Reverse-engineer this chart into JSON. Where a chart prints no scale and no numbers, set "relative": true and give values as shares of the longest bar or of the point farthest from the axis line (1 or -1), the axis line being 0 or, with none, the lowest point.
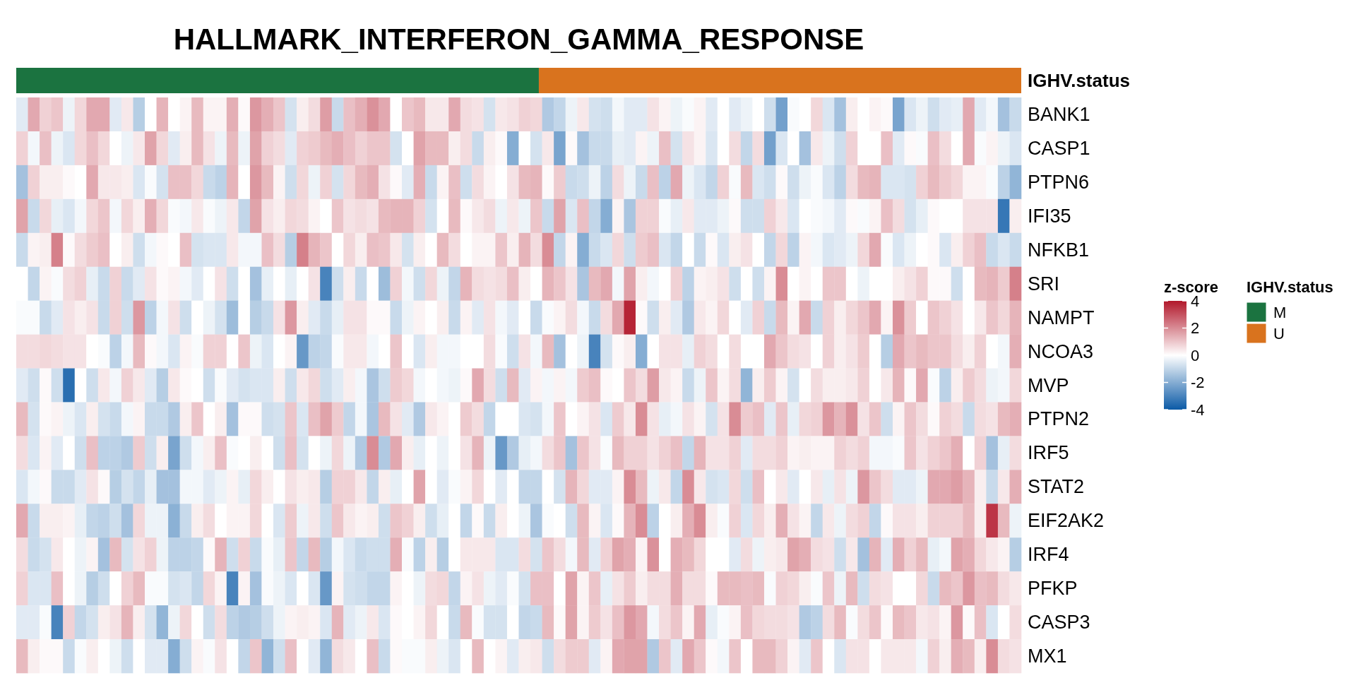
{
  "chart_data": [
    {
      "type": "heatmap",
      "title": "HALLMARK_INTERFERON_GAMMA_RESPONSE",
      "clabel": "z-score",
      "clim": [
        -4,
        4
      ],
      "cticks": [
        -4,
        -2,
        0,
        2,
        4
      ],
      "categories": [
        null,
        null,
        null,
        null,
        null,
        null,
        null,
        null,
        null,
        null,
        null,
        null,
        null,
        null,
        null,
        null,
        null,
        null,
        null,
        null,
        null,
        null,
        null,
        null,
        null,
        null,
        null,
        null,
        null,
        null,
        null,
        null,
        null,
        null,
        null,
        null,
        null,
        null,
        null,
        null,
        null,
        null,
        null,
        null,
        null,
        null,
        null,
        null,
        null,
        null,
        null,
        null,
        null,
        null,
        null,
        null,
        null,
        null,
        null,
        null,
        null,
        null,
        null,
        null,
        null,
        null,
        null,
        null,
        null,
        null,
        null,
        null,
        null,
        null,
        null,
        null,
        null,
        null,
        null,
        null,
        null,
        null,
        null,
        null,
        null,
        null
      ],
      "y_categories": [
        "BANK1",
        "CASP1",
        "PTPN6",
        "IFI35",
        "NFKB1",
        "SRI",
        "NAMPT",
        "NCOA3",
        "MVP",
        "PTPN2",
        "IRF5",
        "STAT2",
        "EIF2AK2",
        "IRF4",
        "PFKP",
        "CASP3",
        "MX1"
      ],
      "cells": [
        [
          -0.5,
          1.5,
          0.8,
          1,
          -0.3,
          0.7,
          1.5,
          1.5,
          -0.5,
          0.4,
          -1.2,
          0,
          1.3,
          0,
          0.2,
          1.2,
          0.2,
          0.2,
          1.4,
          0.1,
          1.8,
          1.4,
          1,
          -0.7,
          0.3,
          0.6,
          1.7,
          -0.9,
          1.1,
          1.4,
          1.9,
          1.5,
          0,
          1,
          1.2,
          0.4,
          0.4,
          1.5,
          0.6,
          0.5,
          -0.7,
          0.4,
          0.5,
          0.8,
          0.7,
          -1.3,
          -1,
          -0.3,
          0.4,
          -0.7,
          -0.8,
          -0.2,
          -0.5,
          -0.5,
          0.5,
          0.2,
          -0.3,
          -0.1,
          0.2,
          -0.5,
          0,
          -0.5,
          -0.3,
          0,
          -0.8,
          -2.3,
          -0.1,
          0,
          0.7,
          -0.6,
          -1.5,
          0.3,
          0,
          0.2,
          0.1,
          -2.2,
          -0.6,
          -0.3,
          -0.8,
          -0.5,
          -0.4,
          1.5,
          -0.5,
          -0.2,
          -1.5,
          -0.9
        ],
        [
          0.8,
          -0.2,
          1.1,
          -0.3,
          -0.6,
          0.7,
          1.1,
          0.7,
          0,
          -0.3,
          0.4,
          1.6,
          0.7,
          -0.5,
          0.3,
          1.2,
          0.5,
          -0.3,
          1.2,
          -0.3,
          1.6,
          0.8,
          0.6,
          -0.5,
          0.8,
          0.9,
          1.2,
          1.4,
          1.1,
          0.8,
          1,
          1,
          -0.7,
          0,
          1.6,
          1.2,
          1.2,
          0.3,
          0.6,
          -0.9,
          0.3,
          0.1,
          -2,
          0,
          -0.7,
          0.4,
          -2.2,
          0.1,
          -1.5,
          -0.9,
          -0.9,
          -0.4,
          -0.5,
          0.2,
          -0.3,
          1.1,
          -0.7,
          0.5,
          0.2,
          -0.6,
          0,
          0.6,
          -1,
          0.6,
          -2.3,
          -0.6,
          0,
          -1.5,
          0.4,
          -0.3,
          -0.8,
          0.8,
          0,
          0,
          1.1,
          -0.5,
          0.1,
          -0.1,
          1.1,
          0.6,
          0,
          1.5,
          -0.1,
          0.2,
          -0.3,
          -0.6
        ],
        [
          -1.5,
          0.8,
          0.3,
          0.3,
          0.1,
          0,
          1.5,
          0.4,
          0.4,
          0.3,
          -0.6,
          -0.1,
          -0.7,
          1.1,
          1.1,
          0.7,
          -0.9,
          -1.1,
          1.3,
          0,
          1.8,
          1.2,
          0.2,
          -0.8,
          0.7,
          -0.3,
          0.8,
          -0.7,
          0.7,
          1.2,
          1.4,
          0.5,
          0.1,
          -0.5,
          1.4,
          -0.9,
          0.2,
          1.1,
          -0.8,
          0.6,
          0.2,
          0,
          0.5,
          1.2,
          1.3,
          0.1,
          0.9,
          -0.9,
          -0.8,
          -0.3,
          -1.1,
          0.6,
          -0.3,
          -0.9,
          1.1,
          -1.1,
          1.5,
          -0.3,
          -0.6,
          -1,
          0.8,
          -0.1,
          1.2,
          -0.6,
          -0.8,
          0.1,
          -0.8,
          -0.3,
          -0.1,
          -0.6,
          -1.1,
          0.6,
          1.2,
          1.3,
          -0.6,
          -0.6,
          -0.7,
          0.8,
          1.2,
          0.9,
          0.7,
          0.2,
          0.2,
          -0.1,
          -1.1,
          -1.8
        ],
        [
          1.6,
          -0.9,
          0.7,
          -0.4,
          -0.6,
          -0.2,
          0.7,
          1,
          -0.2,
          0.7,
          0.3,
          1.4,
          0.7,
          -0.1,
          -0.2,
          0.4,
          -0.1,
          -0.3,
          0.4,
          -1,
          1.6,
          0.5,
          0.3,
          0.7,
          0.6,
          0.2,
          0,
          1,
          0.5,
          0.6,
          0.5,
          1.2,
          1.3,
          1.3,
          0.8,
          -0.7,
          0,
          1.2,
          0.1,
          0.4,
          0.6,
          -0.3,
          0.4,
          -0.3,
          1,
          -0.9,
          1.6,
          -0.6,
          1.1,
          -1,
          -2,
          0.2,
          -1.4,
          0.8,
          0.8,
          -0.1,
          -0.4,
          0.4,
          -0.5,
          -0.5,
          -0.3,
          0.1,
          -0.8,
          -0.8,
          0.8,
          0.4,
          -0.6,
          0,
          -0.1,
          -0.2,
          -0.5,
          0.1,
          -0.1,
          0.2,
          1.1,
          0.6,
          -0.7,
          -0.4,
          0.1,
          0,
          0,
          0.5,
          0.5,
          0.5,
          -3.3,
          0.3
        ],
        [
          -0.9,
          0.2,
          0.3,
          2.2,
          0.1,
          0.6,
          0.9,
          1.1,
          0,
          0.3,
          -0.8,
          -0.2,
          0.1,
          0,
          1.1,
          -0.7,
          -0.6,
          -0.6,
          0.4,
          -0.2,
          -0.2,
          1.1,
          0.6,
          -1.2,
          2.2,
          1.3,
          1,
          0,
          0.7,
          0.3,
          1.1,
          1,
          0.4,
          -0.7,
          0.3,
          0,
          1.2,
          0.6,
          0,
          0.2,
          0.2,
          1,
          0.3,
          1.3,
          0.6,
          2,
          -1,
          0.2,
          -2,
          -0.9,
          -0.6,
          0.7,
          -0.8,
          0.9,
          1.1,
          -0.6,
          -1,
          0,
          -0.9,
          0.1,
          -0.6,
          0.3,
          0.5,
          0,
          -1,
          0.7,
          -1.1,
          0.2,
          -0.2,
          -0.6,
          -0.5,
          -0.3,
          0.7,
          1.5,
          -0.1,
          -0.6,
          -0.3,
          0,
          0.1,
          -0.6,
          0.3,
          0.8,
          1.1,
          -0.9,
          -0.6,
          -0.9
        ],
        [
          0,
          -1,
          0.2,
          -0.1,
          0.6,
          0.8,
          -0.4,
          -0.9,
          0.8,
          -0.9,
          -0.5,
          0.5,
          0.1,
          0.2,
          -0.2,
          -0.5,
          0,
          0.5,
          -0.8,
          0,
          -1.5,
          -0.4,
          0,
          -0.4,
          0,
          0.5,
          -3,
          -0.8,
          0.3,
          -0.9,
          0,
          -1.6,
          0.8,
          -0.2,
          -0.8,
          0.7,
          -0.3,
          -1,
          1.3,
          0.6,
          0.5,
          0.6,
          1.1,
          0.3,
          0,
          1.3,
          1,
          0.5,
          -1.4,
          1.2,
          1.5,
          -0.2,
          1.6,
          0.3,
          -0.2,
          0,
          0.8,
          -1.1,
          0.2,
          0.3,
          0.5,
          -0.8,
          0,
          -0.8,
          0.2,
          2,
          0,
          0.2,
          0,
          1,
          1,
          0,
          -0.3,
          0,
          0,
          0.3,
          0.5,
          0.8,
          0.1,
          0.1,
          -0.8,
          0,
          1.2,
          1.3,
          0.9,
          2.2
        ],
        [
          -0.1,
          -0.1,
          -0.9,
          -0.5,
          0.5,
          0.3,
          0.5,
          -0.9,
          0.8,
          -0.8,
          1.8,
          -1.1,
          -0.2,
          0.5,
          -0.8,
          0,
          -0.3,
          -0.7,
          -1.6,
          0,
          -1.2,
          -0.9,
          0.5,
          1.8,
          0.3,
          -0.5,
          -0.9,
          -0.4,
          0.5,
          0.5,
          0.1,
          0.1,
          -0.9,
          -0.3,
          0.2,
          0,
          0.3,
          -0.9,
          0.2,
          -0.5,
          0.5,
          -0.2,
          -0.5,
          0,
          -0.9,
          -0.1,
          0.2,
          0.6,
          -0.2,
          -0.9,
          0.6,
          1.5,
          3.8,
          0.1,
          -0.8,
          0.3,
          -0.5,
          -1.3,
          0.4,
          0.2,
          0.7,
          0,
          -0.5,
          0.8,
          -0.9,
          1.2,
          0.2,
          1.5,
          -0.9,
          0.8,
          0.3,
          0.7,
          1,
          1.5,
          0.2,
          1.9,
          0.9,
          0,
          1,
          0.8,
          0.5,
          0,
          0.4,
          1,
          0.7,
          1.3
        ],
        [
          0.6,
          0.6,
          0.7,
          0.6,
          0.5,
          0.5,
          0,
          -0.1,
          -1.1,
          -0.2,
          1.2,
          0.1,
          -0.2,
          -0.6,
          0.2,
          -0.1,
          0.8,
          0.8,
          0,
          1,
          -0.3,
          -0.6,
          0,
          0.2,
          -2.5,
          -1.1,
          -1,
          -0.1,
          0.4,
          0.4,
          -0.2,
          0,
          1,
          0,
          -0.6,
          0.3,
          -0.2,
          -0.2,
          0,
          0,
          0.6,
          -0.1,
          -0.8,
          0.5,
          -0.2,
          1.2,
          -1.5,
          0,
          -0.3,
          -3,
          -0.7,
          0.1,
          0.3,
          -2,
          0,
          0.5,
          0.5,
          -0.4,
          0.8,
          0.6,
          0,
          0.6,
          0,
          0,
          1.5,
          1,
          0.6,
          0.5,
          0,
          0.8,
          0.3,
          0.5,
          0.9,
          0,
          -1.2,
          1.5,
          1,
          1.2,
          1,
          1,
          0.6,
          0.3,
          0.8,
          0,
          -0.2,
          1.4
        ],
        [
          -0.5,
          -0.8,
          0.1,
          -0.8,
          -3.5,
          0,
          -0.8,
          0.4,
          -0.2,
          0.8,
          0.4,
          -0.5,
          -1.2,
          0.4,
          0.1,
          0,
          -0.8,
          -0.1,
          -0.5,
          -0.7,
          -0.6,
          -0.6,
          0.3,
          -0.8,
          0.4,
          0.7,
          -0.8,
          -0.5,
          0.3,
          -0.2,
          -1.4,
          -0.8,
          0.9,
          0.7,
          -0.2,
          0,
          -0.2,
          -0.3,
          0.1,
          1.5,
          0.6,
          -0.8,
          1.2,
          -0.5,
          0.2,
          -0.2,
          0.2,
          -0.2,
          0.9,
          1.1,
          0.1,
          0,
          1,
          0.6,
          1.7,
          0.4,
          0.2,
          -0.9,
          -0.3,
          1,
          0.2,
          0.6,
          -1.8,
          0.3,
          0.9,
          0.2,
          -0.7,
          0,
          0.6,
          0.3,
          0.3,
          0.4,
          0.8,
          0,
          0.4,
          1.3,
          0.1,
          1.5,
          -0.1,
          -1.1,
          0.3,
          0.9,
          0.6,
          -0.3,
          -0.2,
          0.7
        ],
        [
          1.2,
          -0.7,
          0.1,
          0.2,
          -0.3,
          -0.6,
          0.3,
          -0.7,
          -0.9,
          -0.2,
          0.2,
          -0.9,
          -0.9,
          -1.3,
          0.3,
          1,
          0,
          0.3,
          -1.5,
          0.1,
          0.1,
          -0.8,
          -0.7,
          1,
          -0.6,
          1.1,
          1.6,
          0.9,
          -1,
          -0.2,
          -1.4,
          1.2,
          0.5,
          -0.5,
          -1.3,
          0.4,
          0.2,
          0,
          0.9,
          0.6,
          -1,
          0,
          0,
          -0.6,
          -0.7,
          -0.2,
          1,
          0,
          0.2,
          0.5,
          -0.6,
          0.9,
          0.4,
          2,
          0.5,
          -0.4,
          -0.2,
          0.5,
          0.2,
          -0.7,
          0.5,
          2,
          0.9,
          1.1,
          -0.5,
          1,
          -0.4,
          0.7,
          0.8,
          1.8,
          1.3,
          1.9,
          0.5,
          1,
          -0.8,
          0.2,
          1,
          0.6,
          0.1,
          0.8,
          0.6,
          -0.9,
          0.6,
          0.5,
          1.2,
          1.4
        ],
        [
          0.6,
          -0.6,
          0.2,
          -0.5,
          0,
          -0.8,
          1.1,
          -1.1,
          -1.1,
          -1.3,
          0.9,
          -0.8,
          0.3,
          -2.2,
          -0.8,
          -0.2,
          0.3,
          1.1,
          -0.1,
          0,
          0.3,
          0,
          -0.8,
          1.1,
          -0.7,
          0,
          -0.3,
          0.7,
          -0.3,
          -1.3,
          2,
          -1.3,
          1.5,
          0.3,
          -0.4,
          0,
          -0.3,
          0,
          0.5,
          1.3,
          -0.3,
          -2.5,
          -1.3,
          -0.4,
          -0.2,
          0.6,
          1,
          -1.5,
          1,
          0.5,
          -0.1,
          1.2,
          0.8,
          0.8,
          0.5,
          0.8,
          1.1,
          -1,
          1.3,
          0.5,
          0.5,
          0.8,
          -0.5,
          0.6,
          0.6,
          0.8,
          0.2,
          0.3,
          0.2,
          0.2,
          0.8,
          0.6,
          0.8,
          -0.2,
          -0.2,
          -0.1,
          1,
          0.5,
          0.8,
          1,
          1.4,
          0,
          0.8,
          -1.5,
          -0.4,
          0.6
        ],
        [
          -0.6,
          -0.2,
          0.1,
          -0.9,
          -0.9,
          -0.5,
          0.5,
          0.1,
          -1.2,
          -0.7,
          -1,
          -0.4,
          -1.5,
          -1.5,
          -0.2,
          -0.2,
          -0.5,
          -0.3,
          0.2,
          -0.4,
          0.7,
          0.3,
          0,
          0.5,
          0.3,
          0.4,
          -1.2,
          0.8,
          0.8,
          0.4,
          -1,
          0.3,
          -0.4,
          0,
          1.6,
          0,
          -0.5,
          -0.1,
          0.2,
          0.7,
          0,
          -0.5,
          0,
          -1,
          -1,
          0,
          -0.7,
          1.3,
          0.7,
          -0.5,
          -0.5,
          0.2,
          2,
          1.2,
          -0.3,
          0.4,
          -1,
          2,
          0.4,
          -0.7,
          -0.6,
          0.7,
          -0.8,
          1.1,
          0,
          0.4,
          -0.5,
          0,
          0.4,
          -0.4,
          0.5,
          -0.3,
          1.8,
          1,
          0.6,
          -0.5,
          -0.5,
          -0.3,
          1.5,
          1.5,
          1.7,
          1.3,
          0.3,
          -0.9,
          0.4,
          1.4
        ],
        [
          1.5,
          -0.9,
          0.3,
          0.3,
          0.2,
          -0.4,
          -1,
          -1.1,
          -0.8,
          -1.5,
          0.7,
          -0.3,
          -0.3,
          -1.9,
          -0.9,
          0.3,
          0.6,
          0,
          0.2,
          0.2,
          0.7,
          0,
          -0.6,
          0.9,
          -0.3,
          0.4,
          -0.8,
          1,
          0.4,
          0.2,
          0.3,
          -0.8,
          1,
          0.8,
          0.3,
          -0.8,
          -0.4,
          0,
          -1,
          0.1,
          -0.9,
          0.3,
          0,
          -0.3,
          -1.4,
          -0.1,
          0,
          -0.8,
          1.2,
          0.2,
          -0.6,
          0.1,
          1.3,
          2,
          -1.1,
          0,
          0.3,
          1.4,
          2,
          0.3,
          -0.1,
          0.8,
          -0.6,
          0.7,
          0.3,
          1.4,
          0.5,
          0.2,
          -1,
          0.4,
          -0.3,
          0.6,
          0.8,
          -1,
          0.1,
          0.5,
          0.5,
          0.3,
          0.8,
          0.8,
          0.8,
          1.2,
          0.3,
          3.5,
          1.2,
          -0.3
        ],
        [
          0.6,
          -0.9,
          -0.7,
          0.4,
          0,
          -0.3,
          0.2,
          -1.5,
          1.2,
          -0.7,
          0.5,
          0.8,
          -0.3,
          -1.1,
          -1.1,
          -1,
          0.1,
          1.3,
          -0.8,
          0.8,
          -0.9,
          -0.1,
          -0.4,
          1,
          -1,
          1.2,
          -1.2,
          -0.2,
          -0.6,
          -0.9,
          -0.8,
          -0.8,
          1.4,
          -0.1,
          -1.1,
          0.3,
          -1.2,
          0,
          0.4,
          0.4,
          0.4,
          -0.6,
          -0.6,
          0.6,
          -0.7,
          1,
          0.6,
          -0.2,
          1.2,
          -0.5,
          0.8,
          1.6,
          1.4,
          0.2,
          1.9,
          0,
          1.4,
          1.2,
          0.7,
          0,
          0,
          -0.5,
          0.6,
          -0.3,
          0.3,
          0.4,
          1.6,
          1.4,
          0.6,
          0.5,
          -0.8,
          0.4,
          -1.5,
          1.3,
          -0.5,
          1.4,
          0.8,
          1.2,
          -0.4,
          -0.2,
          1.6,
          1.4,
          0.7,
          0.4,
          0.2,
          -1.2
        ],
        [
          0.8,
          -0.6,
          -0.6,
          1.1,
          0,
          -0.3,
          -1.2,
          -0.8,
          0,
          0.8,
          1.2,
          -0.1,
          -0.1,
          -0.7,
          -0.6,
          -1,
          0.7,
          0.2,
          -3,
          0.2,
          -1.5,
          -0.1,
          -0.3,
          -0.6,
          0,
          -0.6,
          -2.5,
          0.2,
          -0.7,
          -0.8,
          -1,
          -1,
          0.2,
          0,
          -0.3,
          0.6,
          0.7,
          -1,
          0.2,
          0.5,
          -0.3,
          -0.5,
          -0.1,
          -0.7,
          1.1,
          1.1,
          0,
          1.6,
          0.2,
          1,
          -0.4,
          0.5,
          0.9,
          0.3,
          0.6,
          0.6,
          1.4,
          0.6,
          0.6,
          0.1,
          1.2,
          1.2,
          1.1,
          1.2,
          -0.1,
          0.8,
          0.7,
          0.3,
          -0.1,
          1,
          -0.3,
          1.2,
          -0.8,
          0.6,
          0.5,
          0,
          0,
          0.7,
          -0.9,
          1.2,
          1,
          1.8,
          1.1,
          1.2,
          0.6,
          0.4
        ],
        [
          -0.5,
          -0.5,
          -0.1,
          -3,
          0.8,
          -1,
          -0.7,
          0.3,
          0.5,
          1.3,
          0.3,
          -0.7,
          -1.8,
          -0.3,
          0.7,
          0,
          -0.8,
          0.6,
          -1.1,
          -1.3,
          -1.2,
          -0.8,
          -0.3,
          0.2,
          0.3,
          0.2,
          -0.6,
          1.3,
          -0.5,
          -0.3,
          0.4,
          -0.6,
          0.1,
          0,
          0.2,
          0.7,
          0,
          -0.9,
          1.2,
          -0.1,
          -0.7,
          -0.7,
          0,
          -1,
          -0.9,
          1.2,
          0.1,
          1.6,
          0.2,
          0.9,
          0.5,
          1.1,
          1.8,
          1.5,
          -0.2,
          0.6,
          1,
          0.2,
          1.5,
          -0.4,
          -0.1,
          0.2,
          1.1,
          0.7,
          0.6,
          0.6,
          0.5,
          -1.3,
          -1.1,
          0.6,
          1.2,
          -0.1,
          0.6,
          1,
          0.1,
          1.2,
          1,
          0.4,
          0.5,
          0.2,
          1.8,
          0.1,
          1.1,
          -0.6,
          0,
          0.6
        ],
        [
          1.2,
          0.3,
          0.1,
          0.1,
          -0.9,
          -0.1,
          0.3,
          0,
          -0.3,
          -0.8,
          0,
          -0.5,
          -0.5,
          -2,
          -0.8,
          0.2,
          -0.1,
          0.5,
          0,
          -1,
          1,
          -1.8,
          -0.8,
          1.1,
          0,
          -0.5,
          -1.8,
          0.6,
          0.4,
          0,
          1.1,
          -0.9,
          0.1,
          -0.1,
          -0.1,
          0.3,
          -0.3,
          -0.6,
          0,
          1.2,
          0,
          0.2,
          -0.5,
          0.3,
          0.4,
          -0.8,
          0.6,
          0.9,
          0.9,
          -0.5,
          0.2,
          1.5,
          1.6,
          1.6,
          -1.3,
          1,
          -0.5,
          1.5,
          1,
          0.1,
          -0.2,
          1,
          0,
          1.2,
          1.2,
          0.8,
          0.2,
          -0.5,
          1,
          0,
          -0.6,
          0.5,
          0.5,
          0,
          0.4,
          0.4,
          0.4,
          -0.2,
          0.8,
          0.3,
          1.4,
          1.2,
          0.3,
          2,
          0.6,
          0.5
        ]
      ]
    },
    {
      "type": "bar",
      "orientation": "horizontal",
      "stacked": true,
      "relative": true,
      "categories": [
        "IGHV.status"
      ],
      "legend_title": "IGHV.status",
      "legend": "right",
      "series": [
        {
          "name": "M",
          "color": "#1b7340",
          "values": [
            0.52
          ]
        },
        {
          "name": "U",
          "color": "#d9731e",
          "values": [
            0.48
          ]
        }
      ]
    }
  ]
}
